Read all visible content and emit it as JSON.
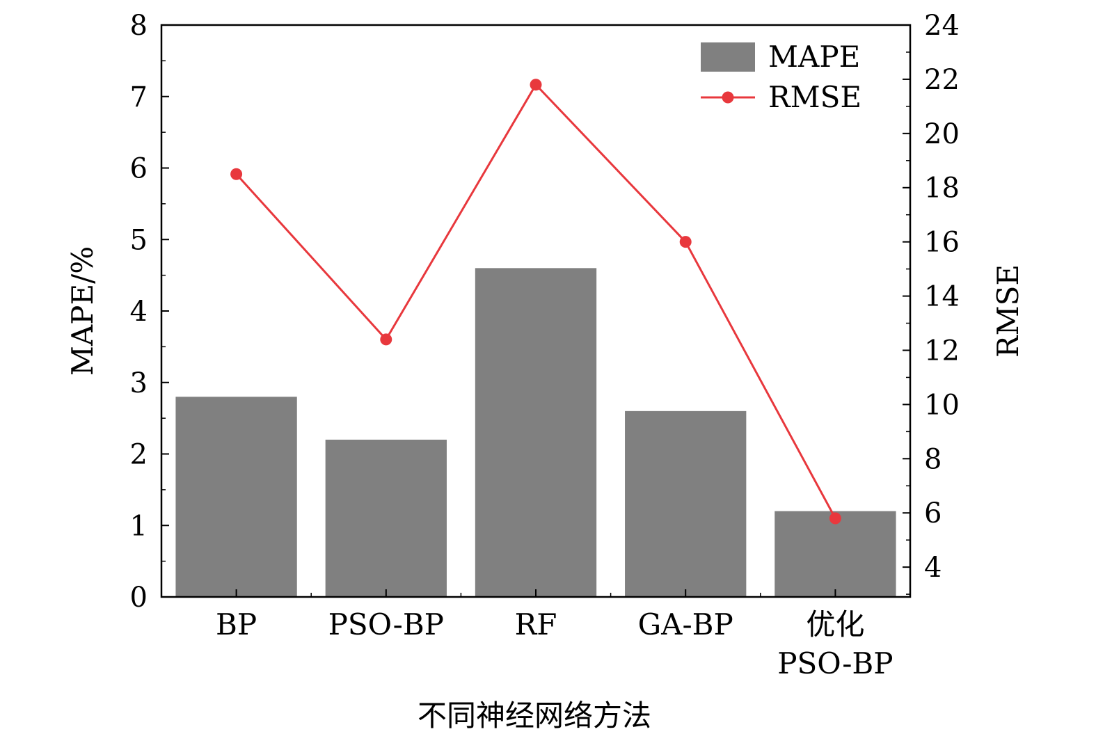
{
  "chart_data": {
    "type": "bar+line",
    "categories": [
      [
        "BP"
      ],
      [
        "PSO-BP"
      ],
      [
        "RF"
      ],
      [
        "GA-BP"
      ],
      [
        "优化",
        "PSO-BP"
      ]
    ],
    "xlabel": "不同神经网络方法",
    "ylabel_left": "MAPE/%",
    "ylabel_right": "RMSE",
    "ylim_left": [
      0,
      8
    ],
    "ylim_right": [
      2.9,
      24
    ],
    "yticks_left": [
      "0",
      "1",
      "2",
      "3",
      "4",
      "5",
      "6",
      "7",
      "8"
    ],
    "yticks_right": [
      "4",
      "6",
      "8",
      "10",
      "12",
      "14",
      "16",
      "18",
      "20",
      "22",
      "24"
    ],
    "series": [
      {
        "name": "MAPE",
        "type": "bar",
        "axis": "left",
        "values": [
          2.8,
          2.2,
          4.6,
          2.6,
          1.2
        ]
      },
      {
        "name": "RMSE",
        "type": "line",
        "axis": "right",
        "values": [
          18.5,
          12.4,
          21.8,
          16.0,
          5.8
        ]
      }
    ],
    "legend_position": "top-right",
    "grid": false
  },
  "colors": {
    "bar": "#808080",
    "line": "#e8383d",
    "axis": "#000000"
  }
}
